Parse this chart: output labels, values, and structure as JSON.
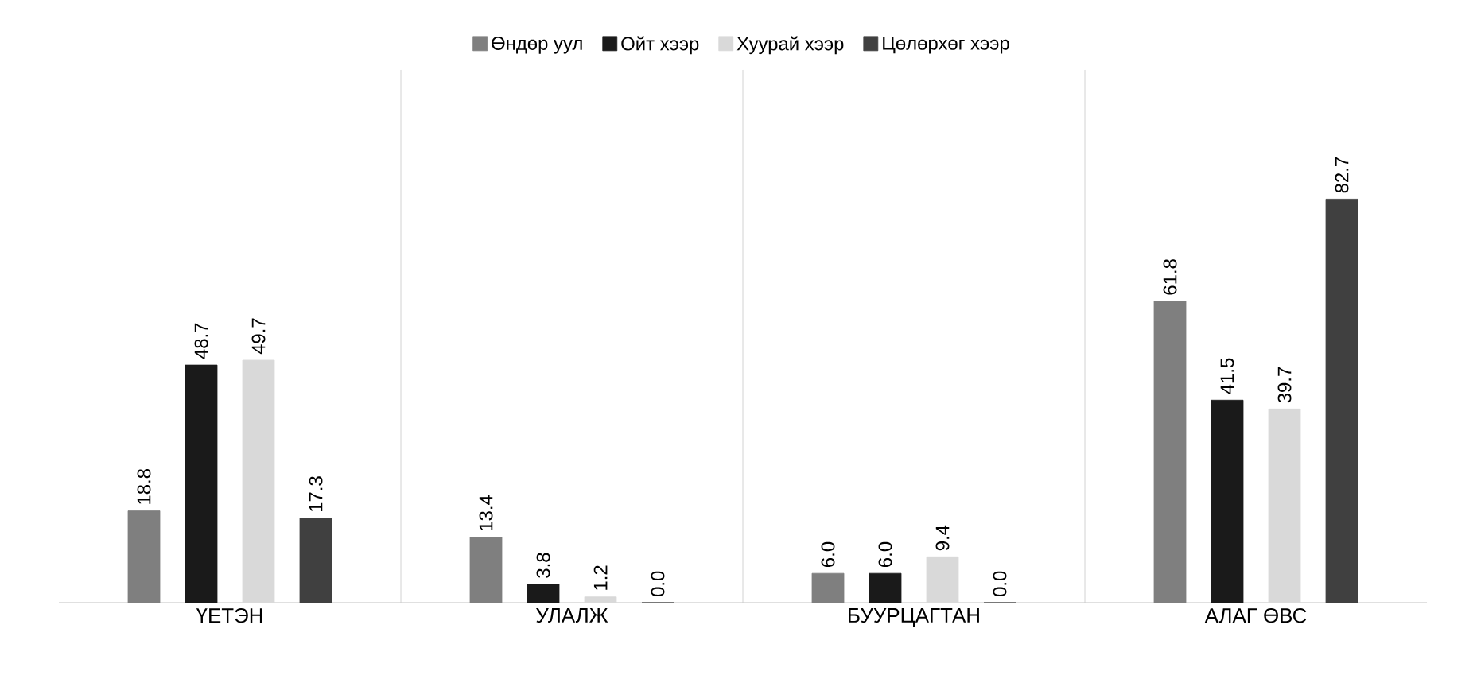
{
  "chart_data": {
    "type": "bar",
    "categories": [
      "ҮЕТЭН",
      "УЛАЛЖ",
      "БУУРЦАГТАН",
      "АЛАГ ӨВС"
    ],
    "series": [
      {
        "name": "Өндөр уул",
        "color": "#7f7f7f",
        "values": [
          18.8,
          13.4,
          6.0,
          61.8
        ],
        "value_labels": [
          "18.8",
          "13.4",
          "6.0",
          "61.8"
        ]
      },
      {
        "name": "Ойт хээр",
        "color": "#1a1a1a",
        "values": [
          48.7,
          3.8,
          6.0,
          41.5
        ],
        "value_labels": [
          "48.7",
          "3.8",
          "6.0",
          "41.5"
        ]
      },
      {
        "name": "Хуурай хээр",
        "color": "#d9d9d9",
        "values": [
          49.7,
          1.2,
          9.4,
          39.7
        ],
        "value_labels": [
          "49.7",
          "1.2",
          "9.4",
          "39.7"
        ]
      },
      {
        "name": "Цөлөрхөг хээр",
        "color": "#404040",
        "values": [
          17.3,
          0.0,
          0.0,
          82.7
        ],
        "value_labels": [
          "17.3",
          "0.0",
          "0.0",
          "82.7"
        ]
      }
    ],
    "legend": "top",
    "grid": "x"
  }
}
